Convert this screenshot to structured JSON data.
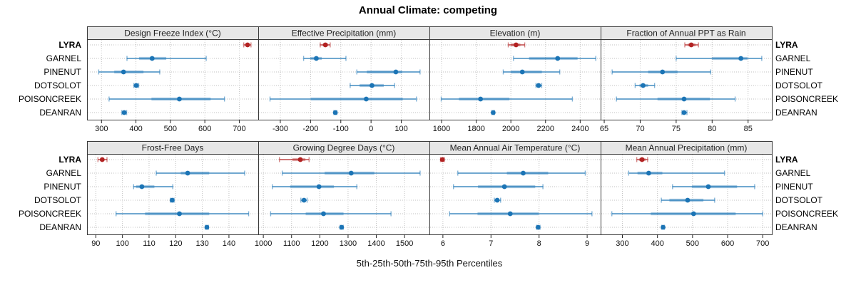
{
  "title": "Annual Climate: competing",
  "chart_data": {
    "type": "trellis_percentile_intervals",
    "title": "Annual Climate: competing",
    "xlabel": "5th-25th-50th-75th-95th Percentiles",
    "percentiles": [
      5,
      25,
      50,
      75,
      95
    ],
    "grid": {
      "rows": 2,
      "cols": 4
    },
    "legend_position": "none",
    "grid_style": "dotted",
    "highlight": "LYRA",
    "colors": {
      "highlight": "#b22222",
      "base": "#1b74b5",
      "header_bg": "#e7e7e7",
      "border": "#3a3a3a",
      "gridline": "#c2c2c2",
      "text": "#111111"
    },
    "groups": [
      {
        "label": "LYRA",
        "bold": true
      },
      {
        "label": "GARNEL",
        "bold": false
      },
      {
        "label": "PINENUT",
        "bold": false
      },
      {
        "label": "DOTSOLOT",
        "bold": false
      },
      {
        "label": "POISONCREEK",
        "bold": false
      },
      {
        "label": "DEANRAN",
        "bold": false
      }
    ],
    "panels": [
      {
        "title": "Design Freeze Index (°C)",
        "ticks": [
          300,
          400,
          500,
          600,
          700
        ],
        "domain": [
          258,
          755
        ],
        "series": {
          "LYRA": [
            713,
            719,
            724,
            729,
            734
          ],
          "GARNEL": [
            374,
            409,
            447,
            488,
            604
          ],
          "PINENUT": [
            292,
            337,
            364,
            422,
            469
          ],
          "DOTSOLOT": [
            394,
            398,
            401,
            404,
            408
          ],
          "POISONCREEK": [
            322,
            445,
            526,
            617,
            657
          ],
          "DEANRAN": [
            359,
            363,
            366,
            369,
            373
          ]
        }
      },
      {
        "title": "Effective Precipitation (mm)",
        "ticks": [
          -300,
          -200,
          -100,
          0,
          100
        ],
        "domain": [
          -373,
          193
        ],
        "series": {
          "LYRA": [
            -168,
            -160,
            -151,
            -142,
            -135
          ],
          "GARNEL": [
            -223,
            -200,
            -181,
            -163,
            -83
          ],
          "PINENUT": [
            -47,
            -14,
            82,
            103,
            162
          ],
          "DOTSOLOT": [
            -69,
            -38,
            3,
            42,
            78
          ],
          "POISONCREEK": [
            -334,
            -199,
            -16,
            105,
            150
          ],
          "DEANRAN": [
            -123,
            -120,
            -118,
            -116,
            -113
          ]
        }
      },
      {
        "title": "Elevation (m)",
        "ticks": [
          1600,
          1800,
          2000,
          2200,
          2400
        ],
        "domain": [
          1530,
          2518
        ],
        "series": {
          "LYRA": [
            1985,
            2000,
            2030,
            2055,
            2080
          ],
          "GARNEL": [
            2015,
            2105,
            2270,
            2385,
            2490
          ],
          "PINENUT": [
            1956,
            2000,
            2066,
            2179,
            2282
          ],
          "DOTSOLOT": [
            2145,
            2153,
            2160,
            2170,
            2178
          ],
          "POISONCREEK": [
            1598,
            1700,
            1825,
            1992,
            2355
          ],
          "DEANRAN": [
            1890,
            1895,
            1898,
            1902,
            1906
          ]
        }
      },
      {
        "title": "Fraction of Annual PPT as Rain",
        "ticks": [
          65,
          70,
          75,
          80,
          85
        ],
        "domain": [
          64.5,
          88.3
        ],
        "series": {
          "LYRA": [
            76.2,
            76.6,
            77.1,
            77.7,
            78.1
          ],
          "GARNEL": [
            75.0,
            80.0,
            84.0,
            84.9,
            86.9
          ],
          "PINENUT": [
            66.1,
            71.1,
            73.1,
            75.2,
            79.8
          ],
          "DOTSOLOT": [
            69.3,
            69.9,
            70.4,
            71.1,
            72.0
          ],
          "POISONCREEK": [
            66.7,
            72.4,
            76.1,
            79.7,
            83.2
          ],
          "DEANRAN": [
            75.8,
            76.0,
            76.1,
            76.3,
            76.5
          ]
        }
      },
      {
        "title": "Frost-Free Days",
        "ticks": [
          90,
          100,
          110,
          120,
          130,
          140
        ],
        "domain": [
          86.7,
          151
        ],
        "series": {
          "LYRA": [
            90.8,
            91.8,
            92.4,
            93.2,
            94.2
          ],
          "GARNEL": [
            112.7,
            121.9,
            124.5,
            132.6,
            145.9
          ],
          "PINENUT": [
            104.2,
            105.1,
            107.3,
            112.0,
            118.9
          ],
          "DOTSOLOT": [
            118.0,
            118.4,
            118.7,
            119.1,
            119.4
          ],
          "POISONCREEK": [
            97.6,
            108.5,
            121.4,
            132.6,
            147.4
          ],
          "DEANRAN": [
            131.2,
            131.5,
            131.7,
            132.0,
            132.3
          ]
        }
      },
      {
        "title": "Growing Degree Days (°C)",
        "ticks": [
          1000,
          1100,
          1200,
          1300,
          1400,
          1500
        ],
        "domain": [
          982,
          1588
        ],
        "series": {
          "LYRA": [
            1057,
            1103,
            1131,
            1149,
            1162
          ],
          "GARNEL": [
            1067,
            1217,
            1311,
            1393,
            1555
          ],
          "PINENUT": [
            1032,
            1095,
            1197,
            1250,
            1331
          ],
          "DOTSOLOT": [
            1133,
            1139,
            1144,
            1150,
            1155
          ],
          "POISONCREEK": [
            1026,
            1150,
            1213,
            1284,
            1452
          ],
          "DEANRAN": [
            1272,
            1275,
            1277,
            1280,
            1283
          ]
        }
      },
      {
        "title": "Mean Annual Air Temperature (°C)",
        "ticks": [
          6,
          7,
          8,
          9
        ],
        "domain": [
          5.72,
          9.28
        ],
        "series": {
          "LYRA": [
            5.95,
            5.97,
            5.99,
            6.01,
            6.03
          ],
          "GARNEL": [
            6.31,
            7.33,
            7.67,
            8.19,
            8.96
          ],
          "PINENUT": [
            6.22,
            6.73,
            7.28,
            7.92,
            8.08
          ],
          "DOTSOLOT": [
            7.07,
            7.1,
            7.13,
            7.17,
            7.2
          ],
          "POISONCREEK": [
            6.14,
            6.72,
            7.4,
            7.99,
            9.1
          ],
          "DEANRAN": [
            7.95,
            7.97,
            7.98,
            8.0,
            8.02
          ]
        }
      },
      {
        "title": "Mean Annual Precipitation (mm)",
        "ticks": [
          300,
          400,
          500,
          600,
          700
        ],
        "domain": [
          238,
          726
        ],
        "series": {
          "LYRA": [
            341,
            347,
            356,
            366,
            372
          ],
          "GARNEL": [
            318,
            343,
            375,
            414,
            591
          ],
          "PINENUT": [
            443,
            498,
            545,
            627,
            677
          ],
          "DOTSOLOT": [
            411,
            434,
            486,
            531,
            563
          ],
          "POISONCREEK": [
            270,
            381,
            503,
            623,
            700
          ],
          "DEANRAN": [
            412,
            414,
            416,
            418,
            420
          ]
        }
      }
    ]
  }
}
